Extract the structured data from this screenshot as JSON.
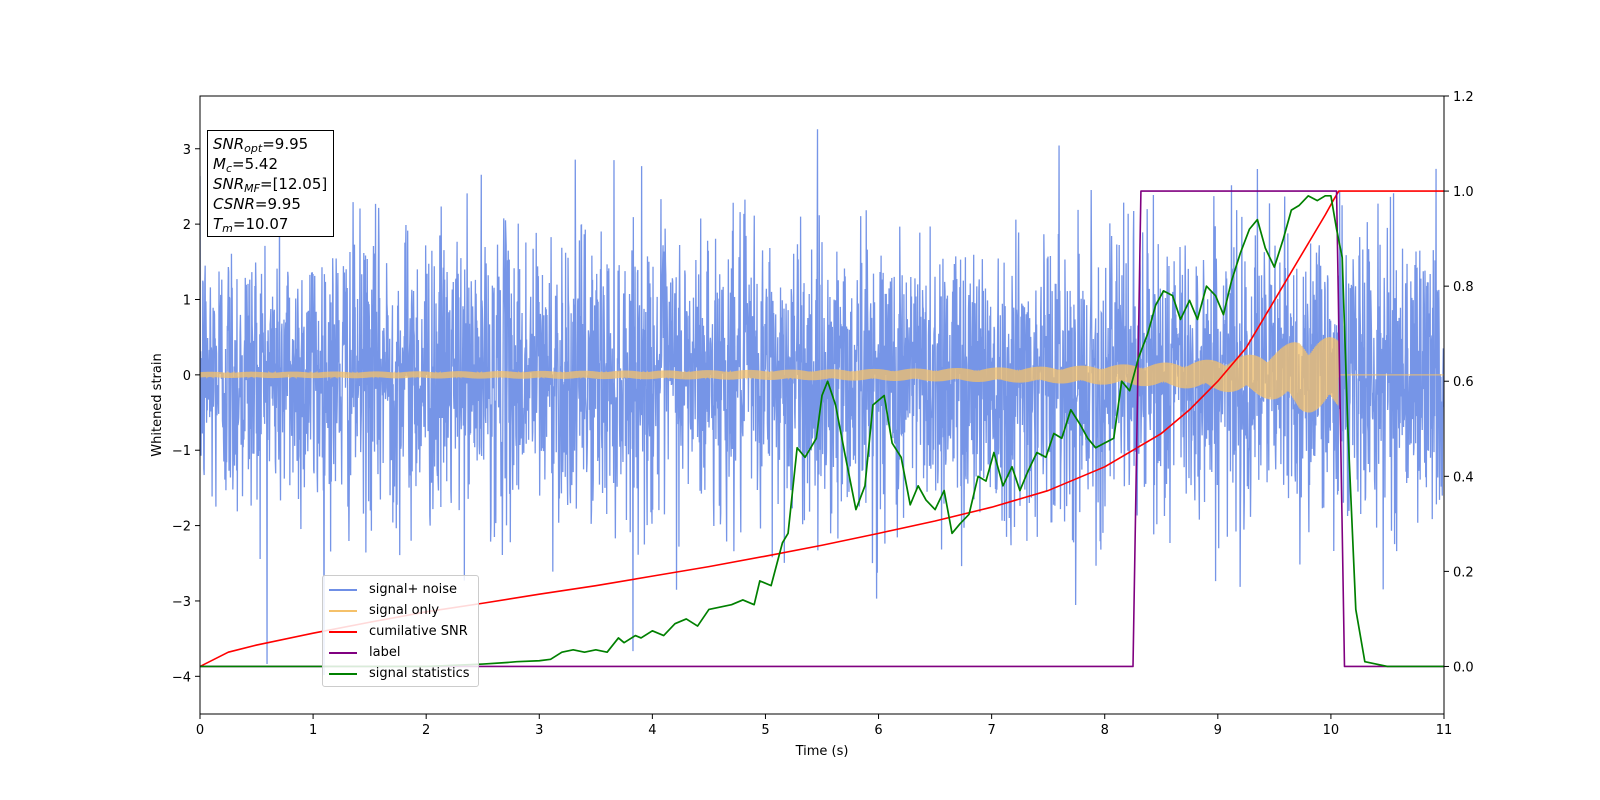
{
  "chart_data": {
    "type": "line",
    "xlabel": "Time (s)",
    "ylabel_left": "Whitened strain",
    "ylabel_right": "",
    "xlim": [
      0,
      11
    ],
    "ylim_left": [
      -4.5,
      3.7
    ],
    "ylim_right": [
      -0.1,
      1.2
    ],
    "xticks": [
      "0",
      "1",
      "2",
      "3",
      "4",
      "5",
      "6",
      "7",
      "8",
      "9",
      "10",
      "11"
    ],
    "yticks_left": [
      "−4",
      "−3",
      "−2",
      "−1",
      "0",
      "1",
      "2",
      "3"
    ],
    "yticks_right": [
      "0.0",
      "0.2",
      "0.4",
      "0.6",
      "0.8",
      "1.0",
      "1.2"
    ],
    "legend_position": "lower-left",
    "annotation": {
      "snr_opt": "9.95",
      "mc": "5.42",
      "snr_mf": "[12.05]",
      "csnr": "9.95",
      "tm": "10.07"
    },
    "series": [
      {
        "name": "signal+ noise",
        "color": "#6f8fe6",
        "axis": "left",
        "kind": "noise",
        "noise_sigma": 0.95,
        "x_range": [
          0,
          11
        ]
      },
      {
        "name": "signal only",
        "color": "#f5c16a",
        "axis": "left",
        "kind": "chirp",
        "amplitude_start": 0.04,
        "amplitude_end": 0.5,
        "end_time": 10.07,
        "x_range": [
          0,
          11
        ]
      },
      {
        "name": "cumilative SNR",
        "color": "#ff0000",
        "axis": "right",
        "x": [
          0,
          0.25,
          0.5,
          1,
          1.5,
          2,
          2.5,
          3,
          3.5,
          4,
          4.5,
          5,
          5.5,
          6,
          6.5,
          7,
          7.5,
          8,
          8.25,
          8.5,
          8.75,
          9,
          9.25,
          9.5,
          9.7,
          9.85,
          9.95,
          10.02,
          10.07,
          10.5,
          11
        ],
        "values": [
          0.0,
          0.03,
          0.045,
          0.07,
          0.093,
          0.115,
          0.133,
          0.152,
          0.17,
          0.19,
          0.21,
          0.232,
          0.255,
          0.28,
          0.306,
          0.335,
          0.37,
          0.42,
          0.455,
          0.49,
          0.54,
          0.6,
          0.67,
          0.77,
          0.85,
          0.91,
          0.95,
          0.98,
          1.0,
          1.0,
          1.0
        ]
      },
      {
        "name": "label",
        "color": "#800080",
        "axis": "right",
        "x": [
          0,
          8.25,
          8.32,
          10.05,
          10.12,
          11
        ],
        "values": [
          0,
          0,
          1,
          1,
          0,
          0
        ]
      },
      {
        "name": "signal statistics",
        "color": "#008000",
        "axis": "right",
        "x": [
          0,
          1,
          2,
          2.5,
          2.7,
          2.8,
          3,
          3.1,
          3.2,
          3.3,
          3.4,
          3.5,
          3.6,
          3.7,
          3.75,
          3.85,
          3.9,
          4,
          4.1,
          4.2,
          4.3,
          4.4,
          4.5,
          4.6,
          4.7,
          4.8,
          4.9,
          4.95,
          5.05,
          5.15,
          5.2,
          5.28,
          5.35,
          5.45,
          5.5,
          5.55,
          5.62,
          5.7,
          5.8,
          5.88,
          5.95,
          6.05,
          6.12,
          6.2,
          6.28,
          6.35,
          6.42,
          6.5,
          6.58,
          6.65,
          6.72,
          6.8,
          6.88,
          6.95,
          7.02,
          7.1,
          7.18,
          7.25,
          7.32,
          7.4,
          7.48,
          7.55,
          7.62,
          7.7,
          7.78,
          7.85,
          7.92,
          8.0,
          8.08,
          8.15,
          8.22,
          8.3,
          8.38,
          8.45,
          8.52,
          8.6,
          8.67,
          8.75,
          8.82,
          8.9,
          8.98,
          9.05,
          9.12,
          9.2,
          9.28,
          9.35,
          9.42,
          9.5,
          9.58,
          9.65,
          9.72,
          9.8,
          9.88,
          9.95,
          10.0,
          10.05,
          10.1,
          10.15,
          10.22,
          10.3,
          10.5,
          11
        ],
        "values": [
          0,
          0,
          0,
          0.005,
          0.008,
          0.01,
          0.012,
          0.015,
          0.03,
          0.035,
          0.03,
          0.035,
          0.03,
          0.06,
          0.05,
          0.065,
          0.06,
          0.075,
          0.065,
          0.09,
          0.1,
          0.085,
          0.12,
          0.125,
          0.13,
          0.14,
          0.13,
          0.18,
          0.17,
          0.26,
          0.28,
          0.46,
          0.44,
          0.48,
          0.57,
          0.6,
          0.55,
          0.45,
          0.33,
          0.38,
          0.55,
          0.57,
          0.47,
          0.44,
          0.34,
          0.38,
          0.35,
          0.33,
          0.37,
          0.28,
          0.3,
          0.32,
          0.4,
          0.39,
          0.45,
          0.38,
          0.42,
          0.37,
          0.41,
          0.45,
          0.44,
          0.49,
          0.48,
          0.54,
          0.51,
          0.48,
          0.46,
          0.47,
          0.48,
          0.6,
          0.58,
          0.65,
          0.7,
          0.76,
          0.79,
          0.78,
          0.73,
          0.77,
          0.73,
          0.8,
          0.78,
          0.74,
          0.81,
          0.87,
          0.92,
          0.94,
          0.88,
          0.84,
          0.9,
          0.96,
          0.97,
          0.99,
          0.98,
          0.99,
          0.99,
          0.92,
          0.86,
          0.5,
          0.12,
          0.01,
          0,
          0
        ]
      }
    ]
  }
}
